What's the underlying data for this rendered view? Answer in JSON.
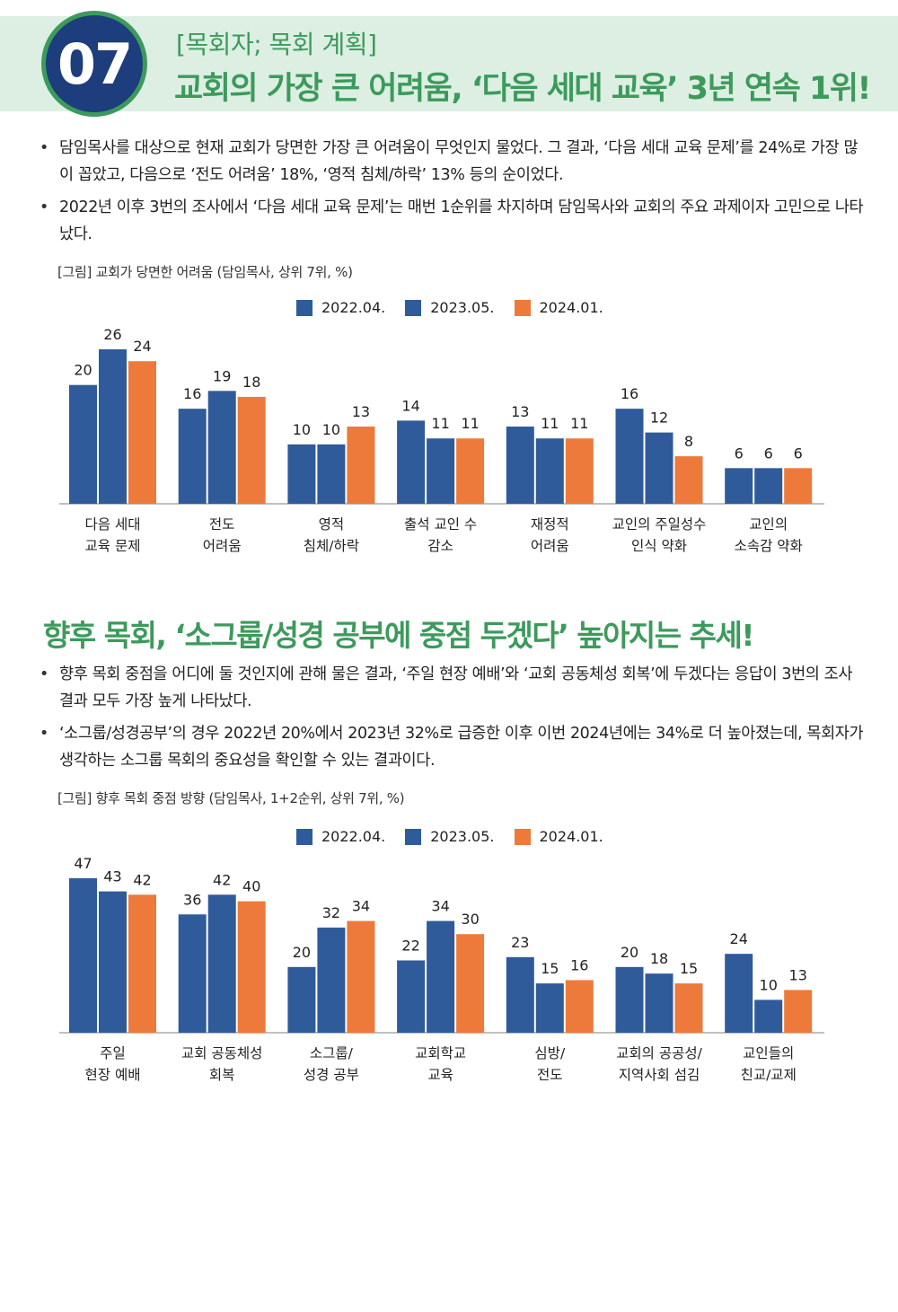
{
  "header": {
    "number": "07",
    "section": "[목회자; 목회 계획]",
    "title": "교회의 가장 큰 어려움, ‘다음 세대 교육’ 3년 연속 1위!"
  },
  "section1": {
    "bullets": [
      "담임목사를 대상으로 현재 교회가 당면한 가장 큰 어려움이 무엇인지 물었다. 그 결과, ‘다음 세대 교육 문제’를 24%로 가장 많이 꼽았고, 다음으로 ‘전도 어려움’ 18%, ‘영적 침체/하락’ 13% 등의 순이었다.",
      "2022년 이후 3번의 조사에서 ‘다음 세대 교육 문제’는 매번 1순위를 차지하며 담임목사와 교회의 주요 과제이자 고민으로 나타났다."
    ],
    "caption": "[그림] 교회가 당면한 어려움 (담임목사, 상위 7위, %)"
  },
  "section2": {
    "title": "향후 목회, ‘소그룹/성경 공부에 중점 두겠다’ 높아지는 추세!",
    "bullets": [
      "향후 목회 중점을 어디에 둘 것인지에 관해 물은 결과, ‘주일 현장 예배’와 ‘교회 공동체성 회복’에 두겠다는 응답이 3번의 조사 결과 모두 가장 높게 나타났다.",
      "‘소그룹/성경공부’의 경우 2022년 20%에서 2023년 32%로 급증한 이후 이번 2024년에는 34%로 더 높아졌는데, 목회자가 생각하는 소그룹 목회의 중요성을 확인할 수 있는 결과이다."
    ],
    "caption": "[그림] 향후 목회 중점 방향 (담임목사, 1+2순위, 상위 7위, %)"
  },
  "colors": {
    "accent_green": "#3c9a5c",
    "navy": "#1d3d7c",
    "series_blue": "#2f5b9a",
    "series_orange": "#ed7a3a"
  },
  "chart_data": [
    {
      "type": "bar",
      "title": "",
      "categories": [
        [
          "다음 세대",
          "교육 문제"
        ],
        [
          "전도",
          "어려움"
        ],
        [
          "영적",
          "침체/하락"
        ],
        [
          "출석 교인 수",
          "감소"
        ],
        [
          "재정적",
          "어려움"
        ],
        [
          "교인의 주일성수",
          "인식 약화"
        ],
        [
          "교인의",
          "소속감 약화"
        ]
      ],
      "series": [
        {
          "name": "2022.04.",
          "color": "#2f5b9a",
          "values": [
            20,
            16,
            10,
            14,
            13,
            16,
            6
          ]
        },
        {
          "name": "2023.05.",
          "color": "#2f5b9a",
          "values": [
            26,
            19,
            10,
            11,
            11,
            12,
            6
          ]
        },
        {
          "name": "2024.01.",
          "color": "#ed7a3a",
          "values": [
            24,
            18,
            13,
            11,
            11,
            8,
            6
          ]
        }
      ],
      "ylim": [
        0,
        26
      ],
      "legend": "top-center",
      "grid": false
    },
    {
      "type": "bar",
      "title": "",
      "categories": [
        [
          "주일",
          "현장 예배"
        ],
        [
          "교회 공동체성",
          "회복"
        ],
        [
          "소그룹/",
          "성경 공부"
        ],
        [
          "교회학교",
          "교육"
        ],
        [
          "심방/",
          "전도"
        ],
        [
          "교회의 공공성/",
          "지역사회 섬김"
        ],
        [
          "교인들의",
          "친교/교제"
        ]
      ],
      "series": [
        {
          "name": "2022.04.",
          "color": "#2f5b9a",
          "values": [
            47,
            36,
            20,
            22,
            23,
            20,
            24
          ]
        },
        {
          "name": "2023.05.",
          "color": "#2f5b9a",
          "values": [
            43,
            42,
            32,
            34,
            15,
            18,
            10
          ]
        },
        {
          "name": "2024.01.",
          "color": "#ed7a3a",
          "values": [
            42,
            40,
            34,
            30,
            16,
            15,
            13
          ]
        }
      ],
      "ylim": [
        0,
        47
      ],
      "legend": "top-center",
      "grid": false
    }
  ]
}
